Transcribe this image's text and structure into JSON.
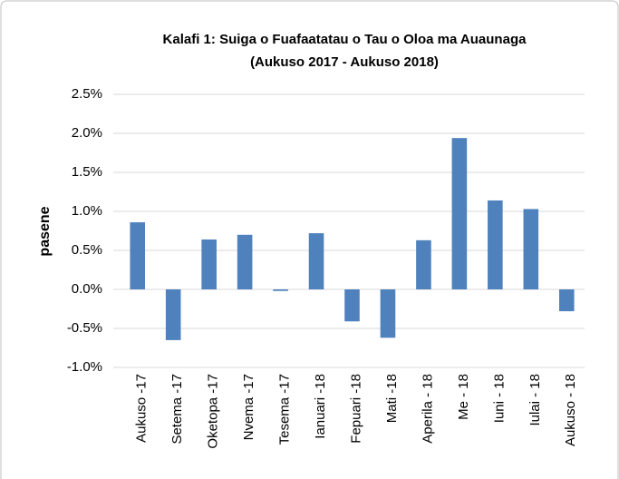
{
  "chart_data": {
    "type": "bar",
    "title": [
      "Kalafi 1: Suiga o Fuafaatatau o Tau o Oloa ma Auaunaga",
      "(Aukuso 2017 - Aukuso 2018)"
    ],
    "y_label": "pasene",
    "categories": [
      "Aukuso -17",
      "Setema -17",
      "Oketopa -17",
      "Nvema -17",
      "Tesema -17",
      "Ianuari -18",
      "Fepuari -18",
      "Mati -18",
      "Aperila - 18",
      "Me - 18",
      "Iuni - 18",
      "Iulai - 18",
      "Aukuso - 18"
    ],
    "values": [
      0.86,
      -0.65,
      0.64,
      0.7,
      -0.02,
      0.72,
      -0.41,
      -0.62,
      0.63,
      1.94,
      1.14,
      1.03,
      -0.28
    ],
    "color": "#4f81bd",
    "ylim": [
      -1.0,
      2.5
    ],
    "yticks": [
      {
        "value": -1.0,
        "label": "-1.0%"
      },
      {
        "value": -0.5,
        "label": "-0.5%"
      },
      {
        "value": 0.0,
        "label": "0.0%"
      },
      {
        "value": 0.5,
        "label": "0.5%"
      },
      {
        "value": 1.0,
        "label": "1.0%"
      },
      {
        "value": 1.5,
        "label": "1.5%"
      },
      {
        "value": 2.0,
        "label": "2.0%"
      },
      {
        "value": 2.5,
        "label": "2.5%"
      }
    ],
    "grid": true
  }
}
